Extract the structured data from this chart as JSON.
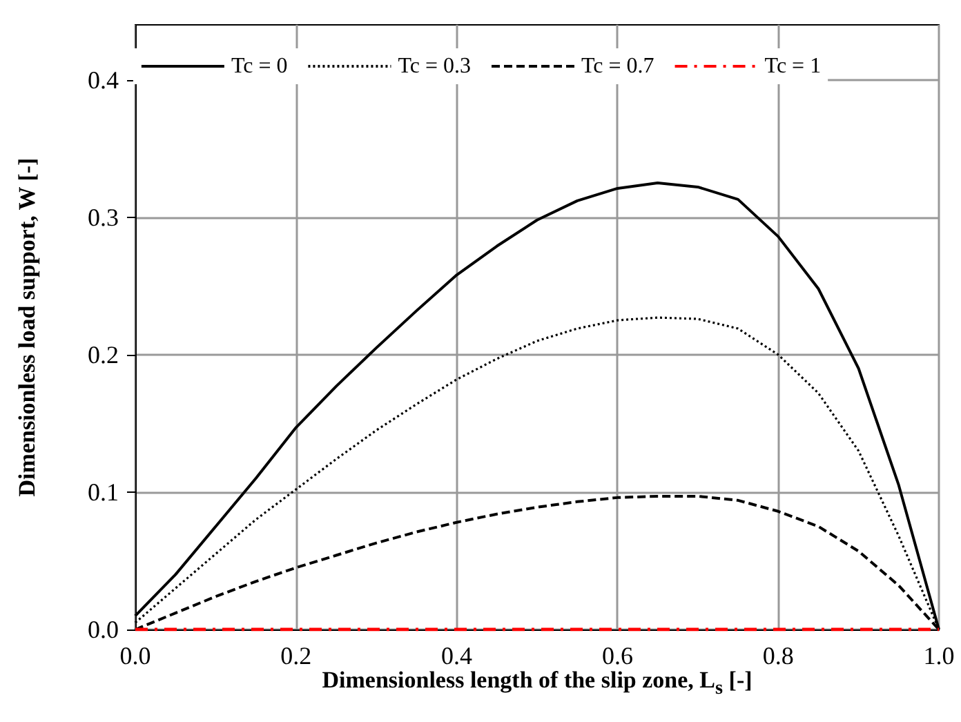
{
  "chart_data": {
    "type": "line",
    "xlabel": "Dimensionless length of the slip zone, L$_{s}$ [-]",
    "ylabel": "Dimensionless load support, W [-]",
    "x": [
      0,
      0.05,
      0.1,
      0.15,
      0.2,
      0.25,
      0.3,
      0.35,
      0.4,
      0.45,
      0.5,
      0.55,
      0.6,
      0.65,
      0.7,
      0.75,
      0.8,
      0.85,
      0.9,
      0.95,
      1
    ],
    "series": [
      {
        "name": "Tc = 0",
        "color": "#000000",
        "line_style": "solid",
        "values": [
          0.01,
          0.04,
          0.075,
          0.11,
          0.147,
          0.177,
          0.205,
          0.232,
          0.258,
          0.279,
          0.298,
          0.312,
          0.321,
          0.325,
          0.322,
          0.313,
          0.286,
          0.248,
          0.19,
          0.105,
          0
        ]
      },
      {
        "name": "Tc = 0.3",
        "color": "#000000",
        "line_style": "dotted",
        "values": [
          0.005,
          0.03,
          0.055,
          0.08,
          0.102,
          0.124,
          0.145,
          0.164,
          0.182,
          0.197,
          0.21,
          0.219,
          0.225,
          0.227,
          0.226,
          0.219,
          0.2,
          0.172,
          0.13,
          0.068,
          0
        ]
      },
      {
        "name": "Tc = 0.7",
        "color": "#000000",
        "line_style": "dashed",
        "values": [
          0,
          0.012,
          0.024,
          0.035,
          0.045,
          0.054,
          0.063,
          0.071,
          0.078,
          0.084,
          0.089,
          0.093,
          0.096,
          0.097,
          0.097,
          0.094,
          0.086,
          0.075,
          0.057,
          0.032,
          0
        ]
      },
      {
        "name": "Tc = 1",
        "color": "#ff0000",
        "line_style": "dashdot",
        "values": [
          0,
          0,
          0,
          0,
          0,
          0,
          0,
          0,
          0,
          0,
          0,
          0,
          0,
          0,
          0,
          0,
          0,
          0,
          0,
          0,
          0
        ]
      }
    ],
    "xlim": [
      0,
      1
    ],
    "xticks": [
      {
        "value": 0,
        "label": "0.0"
      },
      {
        "value": 0.2,
        "label": "0.2"
      },
      {
        "value": 0.4,
        "label": "0.4"
      },
      {
        "value": 0.6,
        "label": "0.6"
      },
      {
        "value": 0.8,
        "label": "0.8"
      },
      {
        "value": 1,
        "label": "1.0"
      }
    ],
    "ylim": [
      0,
      0.44
    ],
    "yticks": [
      {
        "value": 0,
        "label": "0.0"
      },
      {
        "value": 0.1,
        "label": "0.1"
      },
      {
        "value": 0.2,
        "label": "0.2"
      },
      {
        "value": 0.3,
        "label": "0.3"
      },
      {
        "value": 0.4,
        "label": "0.4"
      }
    ],
    "grid": true,
    "legend": "top",
    "marker": "none"
  }
}
